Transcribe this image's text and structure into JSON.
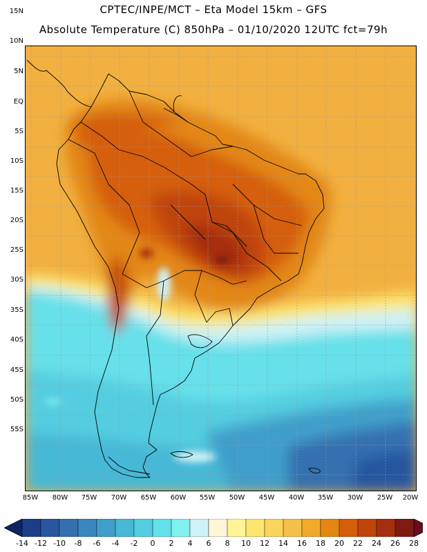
{
  "header": {
    "title_line1": "CPTEC/INPE/MCT –  Eta Model 15km – GFS",
    "title_line2": "Absolute Temperature (C) 850hPa – 01/10/2020 12UTC fct=79h"
  },
  "map": {
    "lat_labels": [
      "15N",
      "10N",
      "5N",
      "EQ",
      "5S",
      "10S",
      "15S",
      "20S",
      "25S",
      "30S",
      "35S",
      "40S",
      "45S",
      "50S",
      "55S"
    ],
    "lon_labels": [
      "85W",
      "80W",
      "75W",
      "70W",
      "65W",
      "60W",
      "55W",
      "50W",
      "45W",
      "40W",
      "35W",
      "30W",
      "25W",
      "20W"
    ]
  },
  "legend": {
    "labels": [
      "-14",
      "-12",
      "-10",
      "-8",
      "-6",
      "-4",
      "-2",
      "0",
      "2",
      "4",
      "6",
      "8",
      "10",
      "12",
      "14",
      "16",
      "18",
      "20",
      "22",
      "24",
      "26",
      "28"
    ],
    "colors": [
      "#1a3e88",
      "#2856a0",
      "#3470b0",
      "#3b86bd",
      "#3f9fca",
      "#47b8d6",
      "#55cde0",
      "#66e0ea",
      "#80f2f0",
      "#cef2f6",
      "#fff6d8",
      "#fff596",
      "#fde670",
      "#fad55b",
      "#f4c04a",
      "#f0a92a",
      "#e38712",
      "#d55e08",
      "#c0450a",
      "#a52f0c",
      "#7e1a12"
    ],
    "under_color": "#0d2460",
    "over_color": "#6a0a20"
  }
}
